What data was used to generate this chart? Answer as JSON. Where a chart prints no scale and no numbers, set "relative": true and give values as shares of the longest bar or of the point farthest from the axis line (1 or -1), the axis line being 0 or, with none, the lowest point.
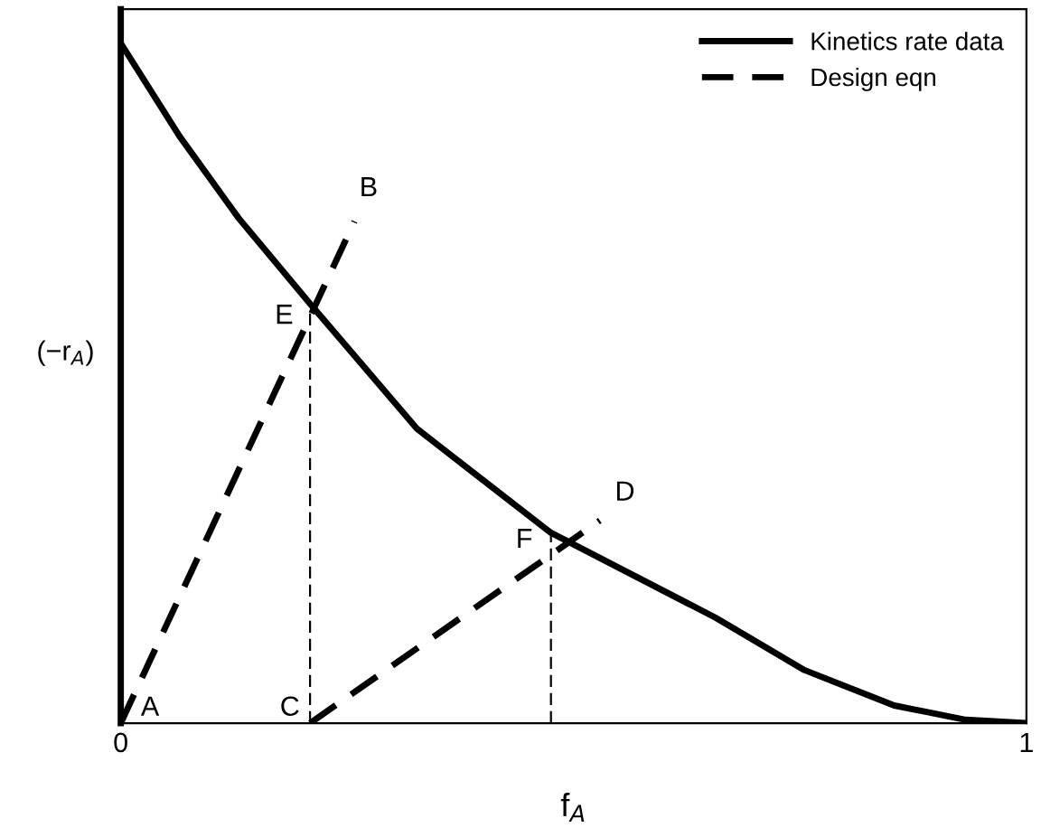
{
  "chart_data": {
    "type": "line",
    "relative": true,
    "xlabel": "f$_{A}$",
    "ylabel": "(−r$_{A}$)",
    "xlim": [
      0,
      1
    ],
    "xticks": [
      0,
      1
    ],
    "tick_labels": "x",
    "legend": "top right",
    "grid": false,
    "marker": "none",
    "series": [
      {
        "name": "Kinetics rate data",
        "color": "#000000",
        "line_style": "solid",
        "x": [
          0,
          0.065,
          0.13,
          0.209,
          0.327,
          0.475,
          0.657,
          0.755,
          0.854,
          0.933,
          1
        ],
        "values": [
          1,
          0.863,
          0.743,
          0.617,
          0.433,
          0.28,
          0.155,
          0.078,
          0.026,
          0.005,
          0
        ]
      },
      {
        "name": "Design eqn",
        "color": "#000000",
        "line_style": "dashed",
        "x": [
          0,
          0.258
        ],
        "values": [
          0,
          0.738
        ]
      },
      {
        "color": "#000000",
        "line_style": "dashed",
        "x": [
          0.209,
          0.529
        ],
        "values": [
          0,
          0.298
        ]
      },
      {
        "color": "#000000",
        "line_style": "dotted",
        "x": [
          0.209,
          0.209
        ],
        "values": [
          0,
          0.617
        ]
      },
      {
        "color": "#000000",
        "line_style": "dotted",
        "x": [
          0.475,
          0.475
        ],
        "values": [
          0,
          0.28
        ]
      }
    ],
    "annotations": [
      {
        "text": "A",
        "x": 0,
        "y": 0
      },
      {
        "text": "B",
        "x": 0.258,
        "y": 0.738
      },
      {
        "text": "C",
        "x": 0.209,
        "y": 0
      },
      {
        "text": "D",
        "x": 0.529,
        "y": 0.298
      },
      {
        "text": "E",
        "x": 0.209,
        "y": 0.617
      },
      {
        "text": "F",
        "x": 0.475,
        "y": 0.28
      }
    ]
  }
}
